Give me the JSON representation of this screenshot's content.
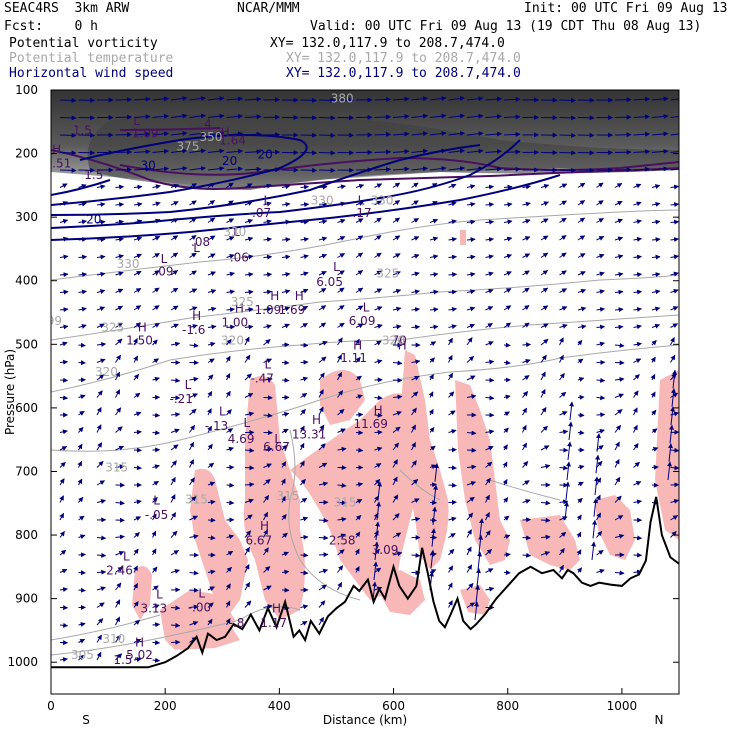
{
  "header": {
    "model": "SEAC4RS  3km ARW",
    "center": "NCAR/MMM",
    "init": "Init: 00 UTC Fri 09 Aug 13",
    "fcst": "Fcst:    0 h",
    "valid": "Valid: 00 UTC Fri 09 Aug 13 (19 CDT Thu 08 Aug 13)",
    "fields": [
      {
        "name": "Potential vorticity",
        "xy": "XY= 132.0,117.9 to 208.7,474.0"
      },
      {
        "name": "Potential temperature",
        "xy": "XY= 132.0,117.9 to 208.7,474.0"
      },
      {
        "name": "Horizontal wind speed",
        "xy": "XY= 132.0,117.9 to 208.7,474.0"
      }
    ]
  },
  "colors": {
    "pv_label": "#4a1060",
    "theta": "#a8a8a8",
    "wind": "#00007a",
    "cloud_fill": "#f8b8b8",
    "terrain": "#000000"
  },
  "chart_data": {
    "type": "cross-section",
    "xlabel": "Distance (km)",
    "ylabel": "Pressure (hPa)",
    "xlim": [
      0,
      1100
    ],
    "ylim": [
      1050,
      100
    ],
    "x_ticks": [
      0,
      200,
      400,
      600,
      800,
      1000
    ],
    "y_ticks": [
      100,
      200,
      300,
      400,
      500,
      600,
      700,
      800,
      900,
      1000
    ],
    "x_end_labels": {
      "left": "S",
      "right": "N"
    },
    "grid": false,
    "terrain_profile": [
      [
        0,
        1008
      ],
      [
        170,
        1008
      ],
      [
        200,
        1000
      ],
      [
        220,
        990
      ],
      [
        240,
        978
      ],
      [
        255,
        960
      ],
      [
        265,
        985
      ],
      [
        275,
        955
      ],
      [
        290,
        965
      ],
      [
        305,
        960
      ],
      [
        320,
        940
      ],
      [
        335,
        948
      ],
      [
        350,
        925
      ],
      [
        365,
        950
      ],
      [
        380,
        915
      ],
      [
        395,
        945
      ],
      [
        410,
        905
      ],
      [
        425,
        960
      ],
      [
        435,
        950
      ],
      [
        445,
        965
      ],
      [
        455,
        935
      ],
      [
        470,
        955
      ],
      [
        485,
        928
      ],
      [
        500,
        915
      ],
      [
        515,
        905
      ],
      [
        530,
        880
      ],
      [
        540,
        888
      ],
      [
        555,
        870
      ],
      [
        565,
        905
      ],
      [
        575,
        885
      ],
      [
        585,
        900
      ],
      [
        600,
        850
      ],
      [
        610,
        880
      ],
      [
        625,
        900
      ],
      [
        640,
        880
      ],
      [
        650,
        820
      ],
      [
        660,
        860
      ],
      [
        670,
        905
      ],
      [
        680,
        935
      ],
      [
        690,
        945
      ],
      [
        700,
        925
      ],
      [
        712,
        900
      ],
      [
        722,
        935
      ],
      [
        735,
        948
      ],
      [
        745,
        940
      ],
      [
        760,
        925
      ],
      [
        780,
        900
      ],
      [
        800,
        880
      ],
      [
        820,
        860
      ],
      [
        840,
        850
      ],
      [
        860,
        860
      ],
      [
        880,
        855
      ],
      [
        895,
        868
      ],
      [
        905,
        855
      ],
      [
        915,
        860
      ],
      [
        930,
        875
      ],
      [
        945,
        880
      ],
      [
        960,
        875
      ],
      [
        980,
        878
      ],
      [
        1000,
        880
      ],
      [
        1015,
        868
      ],
      [
        1030,
        862
      ],
      [
        1042,
        840
      ],
      [
        1050,
        780
      ],
      [
        1060,
        740
      ],
      [
        1070,
        800
      ],
      [
        1085,
        835
      ],
      [
        1100,
        845
      ]
    ],
    "pv_labels": [
      {
        "t": "1.5",
        "x": 55,
        "p": 170
      },
      {
        "t": "L",
        "x": 150,
        "p": 155
      },
      {
        "t": "4",
        "x": 275,
        "p": 160
      },
      {
        "t": "1.09",
        "x": 165,
        "p": 175
      },
      {
        "t": "1.64",
        "x": 318,
        "p": 186
      },
      {
        "t": "H",
        "x": 305,
        "p": 173
      },
      {
        "t": "H",
        "x": 10,
        "p": 200
      },
      {
        "t": "1.51",
        "x": 12,
        "p": 222
      },
      {
        "t": "1.5",
        "x": 75,
        "p": 240
      },
      {
        "t": "L",
        "x": 378,
        "p": 280
      },
      {
        "t": "-.07",
        "x": 365,
        "p": 300
      },
      {
        "t": "L",
        "x": 543,
        "p": 280
      },
      {
        "t": ".17",
        "x": 545,
        "p": 300
      },
      {
        "t": "L",
        "x": 255,
        "p": 355
      },
      {
        "t": ".08",
        "x": 262,
        "p": 345
      },
      {
        "t": "L",
        "x": 325,
        "p": 330
      },
      {
        "t": ".06",
        "x": 330,
        "p": 370
      },
      {
        "t": "L",
        "x": 198,
        "p": 372
      },
      {
        "t": ".09",
        "x": 198,
        "p": 392
      },
      {
        "t": "L",
        "x": 500,
        "p": 385
      },
      {
        "t": "6.05",
        "x": 488,
        "p": 408
      },
      {
        "t": "H",
        "x": 392,
        "p": 430
      },
      {
        "t": "1.09",
        "x": 380,
        "p": 452
      },
      {
        "t": "H",
        "x": 435,
        "p": 430
      },
      {
        "t": "1.69",
        "x": 422,
        "p": 452
      },
      {
        "t": "L",
        "x": 552,
        "p": 448
      },
      {
        "t": "6.09",
        "x": 545,
        "p": 470
      },
      {
        "t": "H",
        "x": 330,
        "p": 450
      },
      {
        "t": "1.00",
        "x": 322,
        "p": 472
      },
      {
        "t": "H",
        "x": 255,
        "p": 462
      },
      {
        "t": "-1.6",
        "x": 250,
        "p": 484
      },
      {
        "t": "H",
        "x": 160,
        "p": 480
      },
      {
        "t": "1.50",
        "x": 155,
        "p": 500
      },
      {
        "t": "H",
        "x": 537,
        "p": 508
      },
      {
        "t": "1.11",
        "x": 530,
        "p": 528
      },
      {
        "t": "H",
        "x": 615,
        "p": 508
      },
      {
        "t": "70",
        "x": 610,
        "p": 500
      },
      {
        "t": "L",
        "x": 380,
        "p": 538
      },
      {
        "t": "-.47",
        "x": 370,
        "p": 560
      },
      {
        "t": "L",
        "x": 240,
        "p": 570
      },
      {
        "t": "-.21",
        "x": 228,
        "p": 592
      },
      {
        "t": "H",
        "x": 465,
        "p": 625
      },
      {
        "t": "13.31",
        "x": 452,
        "p": 648
      },
      {
        "t": "H",
        "x": 573,
        "p": 610
      },
      {
        "t": "11.69",
        "x": 560,
        "p": 632
      },
      {
        "t": "L",
        "x": 300,
        "p": 612
      },
      {
        "t": "-.13",
        "x": 290,
        "p": 635
      },
      {
        "t": "L",
        "x": 343,
        "p": 630
      },
      {
        "t": "4.69",
        "x": 333,
        "p": 655
      },
      {
        "t": "L",
        "x": 397,
        "p": 655
      },
      {
        "t": "6.67",
        "x": 395,
        "p": 668
      },
      {
        "t": "L",
        "x": 185,
        "p": 752
      },
      {
        "t": "-.05",
        "x": 185,
        "p": 775
      },
      {
        "t": "H",
        "x": 374,
        "p": 792
      },
      {
        "t": "6.67",
        "x": 364,
        "p": 815
      },
      {
        "t": "2.58",
        "x": 510,
        "p": 815
      },
      {
        "t": "3.09",
        "x": 585,
        "p": 830
      },
      {
        "t": "L",
        "x": 132,
        "p": 840
      },
      {
        "t": "2.46",
        "x": 120,
        "p": 862
      },
      {
        "t": "L",
        "x": 190,
        "p": 900
      },
      {
        "t": "3.13",
        "x": 180,
        "p": 922
      },
      {
        "t": "L",
        "x": 264,
        "p": 898
      },
      {
        "t": "-.00",
        "x": 260,
        "p": 920
      },
      {
        "t": "H",
        "x": 395,
        "p": 922
      },
      {
        "t": "1.17",
        "x": 390,
        "p": 945
      },
      {
        "t": "-.8",
        "x": 325,
        "p": 945
      },
      {
        "t": "H",
        "x": 155,
        "p": 975
      },
      {
        "t": "5.02",
        "x": 155,
        "p": 995
      },
      {
        "t": "1.5",
        "x": 126,
        "p": 1003
      }
    ],
    "theta_labels": [
      {
        "t": "330",
        "x": 135,
        "p": 380
      },
      {
        "t": "330",
        "x": 322,
        "p": 330
      },
      {
        "t": "330",
        "x": 475,
        "p": 280
      },
      {
        "t": "330",
        "x": 580,
        "p": 280
      },
      {
        "t": "325",
        "x": 108,
        "p": 480
      },
      {
        "t": "325",
        "x": 335,
        "p": 440
      },
      {
        "t": "325",
        "x": 590,
        "p": 395
      },
      {
        "t": "320",
        "x": 97,
        "p": 550
      },
      {
        "t": "320",
        "x": 318,
        "p": 500
      },
      {
        "t": "320",
        "x": 600,
        "p": 500
      },
      {
        "t": "315",
        "x": 115,
        "p": 700
      },
      {
        "t": "315",
        "x": 255,
        "p": 750
      },
      {
        "t": "315",
        "x": 415,
        "p": 745
      },
      {
        "t": "315",
        "x": 515,
        "p": 755
      },
      {
        "t": "310",
        "x": 110,
        "p": 970
      },
      {
        "t": "305",
        "x": 55,
        "p": 995
      },
      {
        "t": "350",
        "x": 280,
        "p": 180
      },
      {
        "t": "375",
        "x": 240,
        "p": 195
      },
      {
        "t": "380",
        "x": 510,
        "p": 120
      },
      {
        "t": "99",
        "x": 6,
        "p": 470
      }
    ],
    "wind_labels": [
      {
        "t": "30",
        "x": 170,
        "p": 225
      },
      {
        "t": "20",
        "x": 75,
        "p": 310
      },
      {
        "t": "20",
        "x": 313,
        "p": 218
      },
      {
        "t": "20",
        "x": 375,
        "p": 208
      }
    ]
  }
}
